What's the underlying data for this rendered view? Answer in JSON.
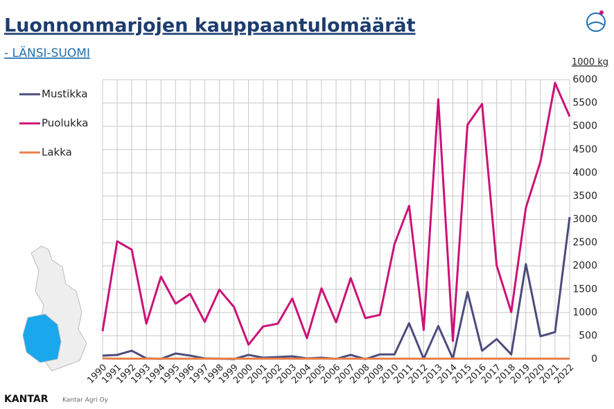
{
  "chart_data": {
    "type": "line",
    "title": "Luonnonmarjojen kauppaantulomäärät",
    "subtitle": "- LÄNSI-SUOMI",
    "y_label": "1000 kg",
    "y_axis_side": "right",
    "legend": "top-left",
    "grid": true,
    "categories": [
      "1990",
      "1991",
      "1992",
      "1993",
      "1994",
      "1995",
      "1996",
      "1997",
      "1998",
      "1999",
      "2000",
      "2001",
      "2002",
      "2003",
      "2004",
      "2005",
      "2006",
      "2007",
      "2008",
      "2009",
      "2010",
      "2011",
      "2012",
      "2013",
      "2014",
      "2015",
      "2016",
      "2017",
      "2018",
      "2019",
      "2020",
      "2021",
      "2022"
    ],
    "series": [
      {
        "name": "Mustikka",
        "color": "#4b4b7d",
        "values": [
          75,
          90,
          180,
          15,
          5,
          120,
          75,
          15,
          10,
          0,
          90,
          30,
          45,
          60,
          15,
          30,
          5,
          90,
          0,
          100,
          100,
          770,
          5,
          710,
          10,
          1440,
          180,
          430,
          100,
          2040,
          490,
          580,
          3050
        ]
      },
      {
        "name": "Puolukka",
        "color": "#cc1177",
        "values": [
          600,
          2530,
          2350,
          760,
          1770,
          1190,
          1400,
          800,
          1490,
          1120,
          310,
          700,
          760,
          1300,
          450,
          1520,
          790,
          1740,
          880,
          950,
          2470,
          3290,
          625,
          5580,
          390,
          5030,
          5480,
          2010,
          1010,
          3250,
          4240,
          5930,
          5210
        ]
      },
      {
        "name": "Lakka",
        "color": "#e8804a",
        "values": [
          15,
          10,
          10,
          10,
          10,
          10,
          10,
          10,
          10,
          10,
          10,
          10,
          10,
          10,
          10,
          10,
          10,
          10,
          10,
          10,
          10,
          10,
          10,
          10,
          10,
          10,
          10,
          10,
          10,
          10,
          10,
          10,
          10
        ]
      }
    ],
    "ylim": [
      0,
      6000
    ],
    "yticks": [
      0,
      500,
      1000,
      1500,
      2000,
      2500,
      3000,
      3500,
      4000,
      4500,
      5000,
      5500,
      6000
    ],
    "footer": {
      "brand": "KANTAR",
      "company": "Kantar Agri Oy"
    }
  }
}
